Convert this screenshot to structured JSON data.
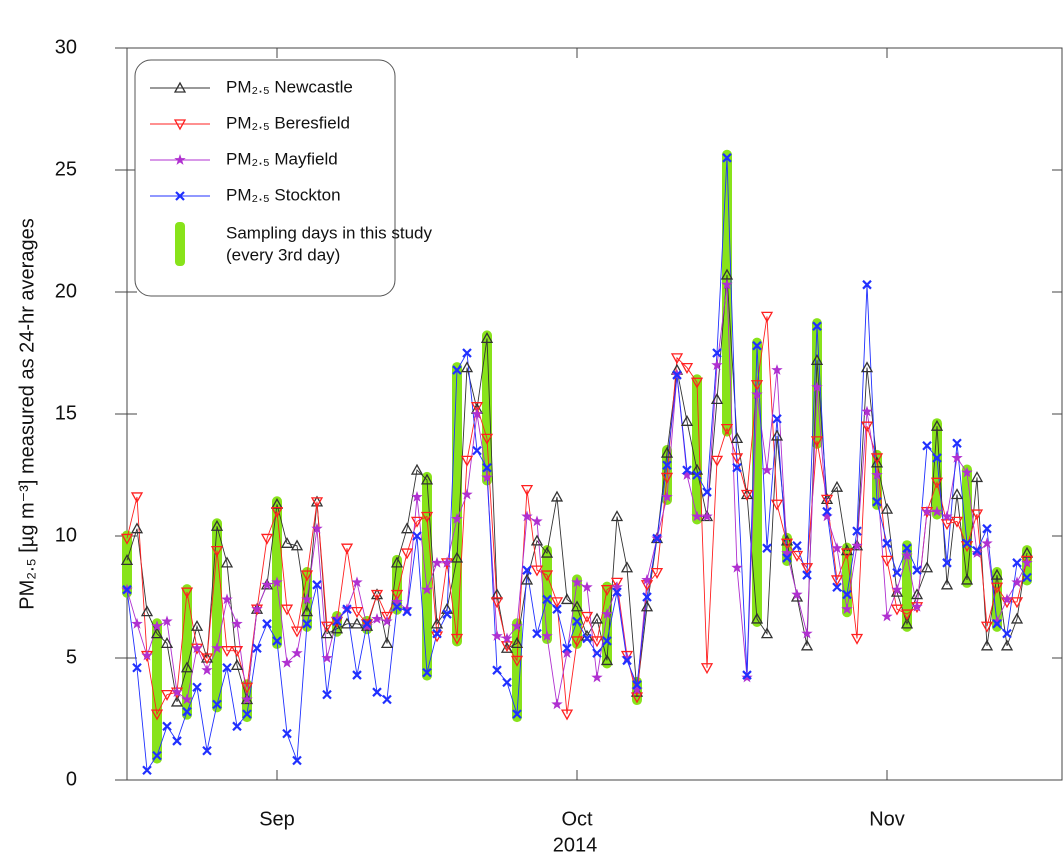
{
  "chart_data": {
    "type": "line",
    "ylabel": "PM₂.₅ [µg m⁻³] measured as 24-hr averages",
    "xlabel": "2014",
    "x": [
      0,
      1,
      2,
      3,
      4,
      5,
      6,
      7,
      8,
      9,
      10,
      11,
      12,
      13,
      14,
      15,
      16,
      17,
      18,
      19,
      20,
      21,
      22,
      23,
      24,
      25,
      26,
      27,
      28,
      29,
      30,
      31,
      32,
      33,
      34,
      35,
      36,
      37,
      38,
      39,
      40,
      41,
      42,
      43,
      44,
      45,
      46,
      47,
      48,
      49,
      50,
      51,
      52,
      53,
      54,
      55,
      56,
      57,
      58,
      59,
      60,
      61,
      62,
      63,
      64,
      65,
      66,
      67,
      68,
      69,
      70,
      71,
      72,
      73,
      74,
      75,
      76,
      77,
      78,
      79,
      80,
      81,
      82,
      83,
      84,
      85,
      86,
      87,
      88,
      89,
      90
    ],
    "xlim": [
      0,
      93.5
    ],
    "xticks": [
      {
        "value": 15,
        "label": "Sep"
      },
      {
        "value": 45,
        "label": "Oct"
      },
      {
        "value": 76,
        "label": "Nov"
      }
    ],
    "ylim": [
      0,
      30
    ],
    "yticks": [
      0,
      5,
      10,
      15,
      20,
      25,
      30
    ],
    "legend": "upper left",
    "series": [
      {
        "name": "PM₂.₅ Newcastle",
        "color": "#333333",
        "marker": "triangle-up",
        "values": [
          9.0,
          10.3,
          6.9,
          6.0,
          5.6,
          3.2,
          4.6,
          6.3,
          5.0,
          10.4,
          8.9,
          4.7,
          3.3,
          7.0,
          8.0,
          11.3,
          9.7,
          9.6,
          6.9,
          11.4,
          6.0,
          6.2,
          6.4,
          6.4,
          6.3,
          7.6,
          5.6,
          8.9,
          10.3,
          12.7,
          12.3,
          6.4,
          7.0,
          9.1,
          16.9,
          15.2,
          18.1,
          7.6,
          5.4,
          5.6,
          8.2,
          9.8,
          9.3,
          11.6,
          7.4,
          7.1,
          5.9,
          6.6,
          4.9,
          10.8,
          8.7,
          3.6,
          7.1,
          9.9,
          13.4,
          16.8,
          14.7,
          12.7,
          10.8,
          15.6,
          20.7,
          14.0,
          11.7,
          6.6,
          6.0,
          14.1,
          9.8,
          7.5,
          5.5,
          17.2,
          11.5,
          12.0,
          9.4,
          9.6,
          16.9,
          13.0,
          11.1,
          7.7,
          6.4,
          7.6,
          8.7,
          14.5,
          8.0,
          11.7,
          8.2,
          12.4,
          5.5,
          8.4,
          5.5,
          6.6,
          9.3
        ]
      },
      {
        "name": "PM₂.₅ Beresfield",
        "color": "#ff2020",
        "marker": "triangle-down",
        "values": [
          9.9,
          11.6,
          5.1,
          2.7,
          3.5,
          3.6,
          7.7,
          5.4,
          5.0,
          9.4,
          5.3,
          5.3,
          3.8,
          7.0,
          9.9,
          11.0,
          7.0,
          6.1,
          8.4,
          11.4,
          6.3,
          6.5,
          9.5,
          6.9,
          6.4,
          7.6,
          6.7,
          7.6,
          9.3,
          10.6,
          10.8,
          5.9,
          8.9,
          5.8,
          13.1,
          15.3,
          14.0,
          7.3,
          5.5,
          4.9,
          11.9,
          8.6,
          8.4,
          7.3,
          2.7,
          5.7,
          6.7,
          5.7,
          7.8,
          8.1,
          5.1,
          3.4,
          8.0,
          8.5,
          12.4,
          17.3,
          16.9,
          16.3,
          4.6,
          13.1,
          14.4,
          13.2,
          11.7,
          16.2,
          19.0,
          11.3,
          9.7,
          9.2,
          8.7,
          13.9,
          11.5,
          8.2,
          9.3,
          5.8,
          14.5,
          13.2,
          9.0,
          7.0,
          6.8,
          7.1,
          11.0,
          12.2,
          10.5,
          10.6,
          9.6,
          10.9,
          6.3,
          7.9,
          7.3,
          7.3,
          9.0
        ]
      },
      {
        "name": "PM₂.₅ Mayfield",
        "color": "#b030d0",
        "marker": "star",
        "values": [
          7.8,
          6.4,
          5.1,
          6.3,
          6.5,
          3.6,
          3.3,
          5.4,
          4.5,
          5.4,
          7.4,
          6.4,
          3.3,
          7.0,
          8.0,
          8.1,
          4.8,
          5.2,
          7.4,
          10.3,
          5.0,
          6.6,
          7.0,
          8.1,
          6.3,
          6.6,
          6.5,
          7.3,
          7.0,
          11.6,
          7.8,
          8.9,
          8.9,
          10.7,
          11.7,
          15.0,
          12.4,
          5.9,
          5.8,
          6.3,
          10.8,
          10.6,
          5.9,
          3.1,
          5.2,
          8.1,
          7.9,
          4.2,
          6.8,
          7.9,
          5.0,
          3.7,
          8.2,
          9.9,
          11.6,
          16.6,
          12.5,
          10.8,
          10.8,
          17.0,
          20.3,
          8.7,
          4.2,
          15.8,
          12.7,
          16.8,
          9.3,
          7.6,
          6.0,
          16.1,
          10.8,
          9.5,
          7.0,
          9.6,
          15.1,
          12.5,
          6.7,
          7.8,
          9.2,
          7.1,
          11.0,
          11.0,
          10.8,
          13.2,
          12.6,
          9.3,
          9.7,
          6.5,
          7.4,
          8.1,
          8.9
        ]
      },
      {
        "name": "PM₂.₅ Stockton",
        "color": "#2030ff",
        "marker": "cross",
        "values": [
          7.8,
          4.6,
          0.4,
          1.0,
          2.2,
          1.6,
          2.8,
          3.8,
          1.2,
          3.1,
          4.6,
          2.2,
          2.7,
          5.4,
          6.4,
          5.7,
          1.9,
          0.8,
          6.4,
          8.0,
          3.5,
          6.5,
          7.0,
          4.3,
          6.4,
          3.6,
          3.3,
          7.1,
          6.9,
          10.0,
          4.4,
          6.0,
          6.8,
          16.8,
          17.5,
          13.5,
          12.8,
          4.5,
          4.0,
          2.7,
          8.6,
          6.0,
          7.4,
          7.0,
          5.4,
          6.5,
          5.8,
          5.2,
          5.7,
          7.7,
          4.9,
          3.9,
          7.5,
          9.9,
          12.9,
          16.6,
          12.7,
          12.5,
          11.8,
          17.5,
          25.5,
          12.8,
          4.3,
          17.8,
          9.5,
          14.8,
          9.1,
          9.6,
          8.4,
          18.6,
          11.0,
          7.9,
          7.6,
          10.2,
          20.3,
          11.4,
          9.7,
          8.5,
          9.5,
          8.6,
          13.7,
          13.2,
          8.9,
          13.8,
          9.7,
          9.4,
          10.3,
          6.4,
          6.0,
          8.9,
          8.3
        ]
      }
    ],
    "sampling": {
      "name_lines": [
        "Sampling days in this study",
        "(every 3rd day)"
      ],
      "color": "#88e31a",
      "x": [
        0,
        3,
        6,
        9,
        12,
        15,
        18,
        21,
        24,
        27,
        30,
        33,
        36,
        39,
        42,
        45,
        48,
        51,
        54,
        57,
        60,
        63,
        66,
        69,
        72,
        75,
        78,
        81,
        84,
        87,
        90
      ]
    }
  }
}
